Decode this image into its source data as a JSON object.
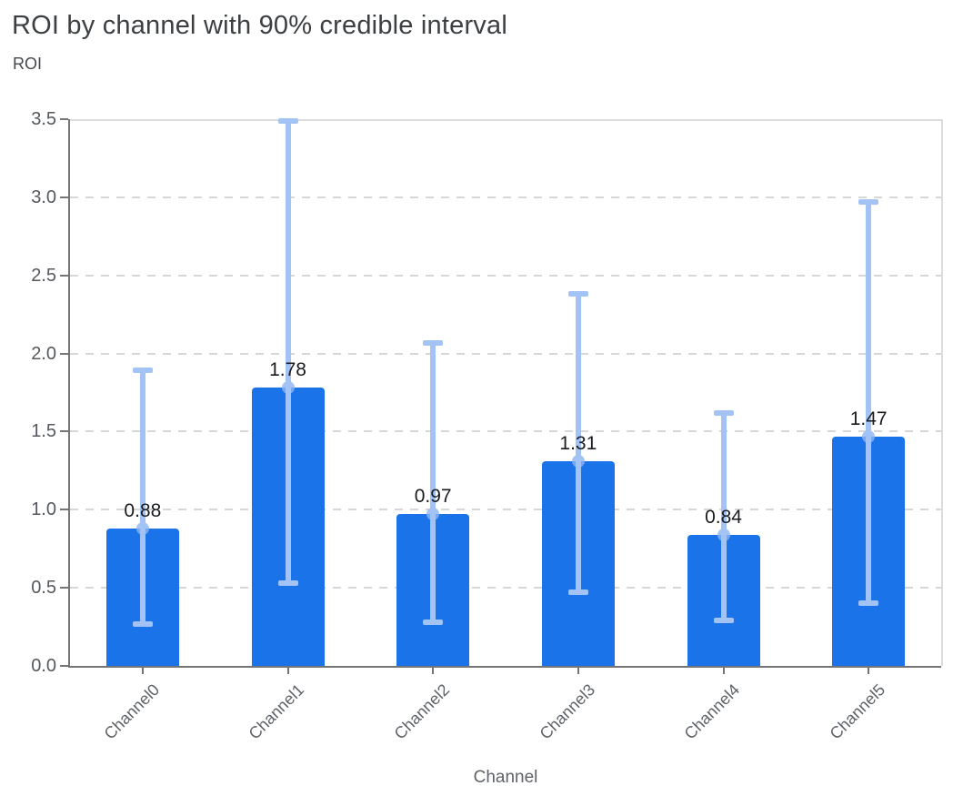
{
  "header": {
    "title": "ROI by channel with 90% credible interval",
    "subtitle": "ROI"
  },
  "chart_data": {
    "type": "bar",
    "title": "ROI by channel with 90% credible interval",
    "xlabel": "Channel",
    "ylabel": "ROI",
    "categories": [
      "Channel0",
      "Channel1",
      "Channel2",
      "Channel3",
      "Channel4",
      "Channel5"
    ],
    "series": [
      {
        "name": "ROI point estimate",
        "values": [
          0.88,
          1.78,
          0.97,
          1.31,
          0.84,
          1.47
        ]
      },
      {
        "name": "90% credible interval lower",
        "values": [
          0.27,
          0.53,
          0.28,
          0.47,
          0.29,
          0.4
        ]
      },
      {
        "name": "90% credible interval upper",
        "values": [
          1.89,
          3.49,
          2.07,
          2.38,
          1.62,
          2.97
        ]
      }
    ],
    "bar_labels": [
      "0.88",
      "1.78",
      "0.97",
      "1.31",
      "0.84",
      "1.47"
    ],
    "ylim": [
      0,
      3.5
    ],
    "ytick_labels": [
      "0.0",
      "0.5",
      "1.0",
      "1.5",
      "2.0",
      "2.5",
      "3.0",
      "3.5"
    ],
    "grid": "horizontal-dashed",
    "legend": "none",
    "colors": {
      "bar": "#1A73E8",
      "error_bar": "#A3C3F5",
      "mean_marker": "#8DB4F5",
      "value_label": "#191B1E",
      "axis": "#737577",
      "gridline": "#D7D7D7",
      "plot_border": "#DCDCDC",
      "title_text": "#3C4043",
      "tick_text": "#55585C"
    }
  }
}
